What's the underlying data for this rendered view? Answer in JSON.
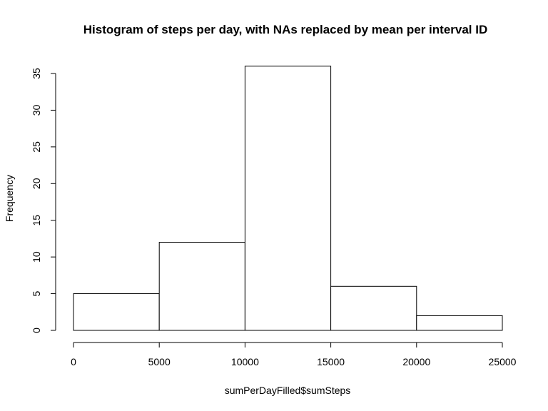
{
  "chart_data": {
    "type": "bar",
    "title": "Histogram of steps per day, with NAs replaced by mean per interval ID",
    "xlabel": "sumPerDayFilled$sumSteps",
    "ylabel": "Frequency",
    "bins": [
      {
        "from": 0,
        "to": 5000,
        "count": 5
      },
      {
        "from": 5000,
        "to": 10000,
        "count": 12
      },
      {
        "from": 10000,
        "to": 15000,
        "count": 36
      },
      {
        "from": 15000,
        "to": 20000,
        "count": 6
      },
      {
        "from": 20000,
        "to": 25000,
        "count": 2
      }
    ],
    "xlim": [
      0,
      25000
    ],
    "ylim": [
      0,
      36
    ],
    "xticks": [
      0,
      5000,
      10000,
      15000,
      20000,
      25000
    ],
    "yticks": [
      0,
      5,
      10,
      15,
      20,
      25,
      30,
      35
    ],
    "grid": false,
    "legend": "none",
    "bar_fill": "#ffffff",
    "bar_stroke": "#000000"
  }
}
